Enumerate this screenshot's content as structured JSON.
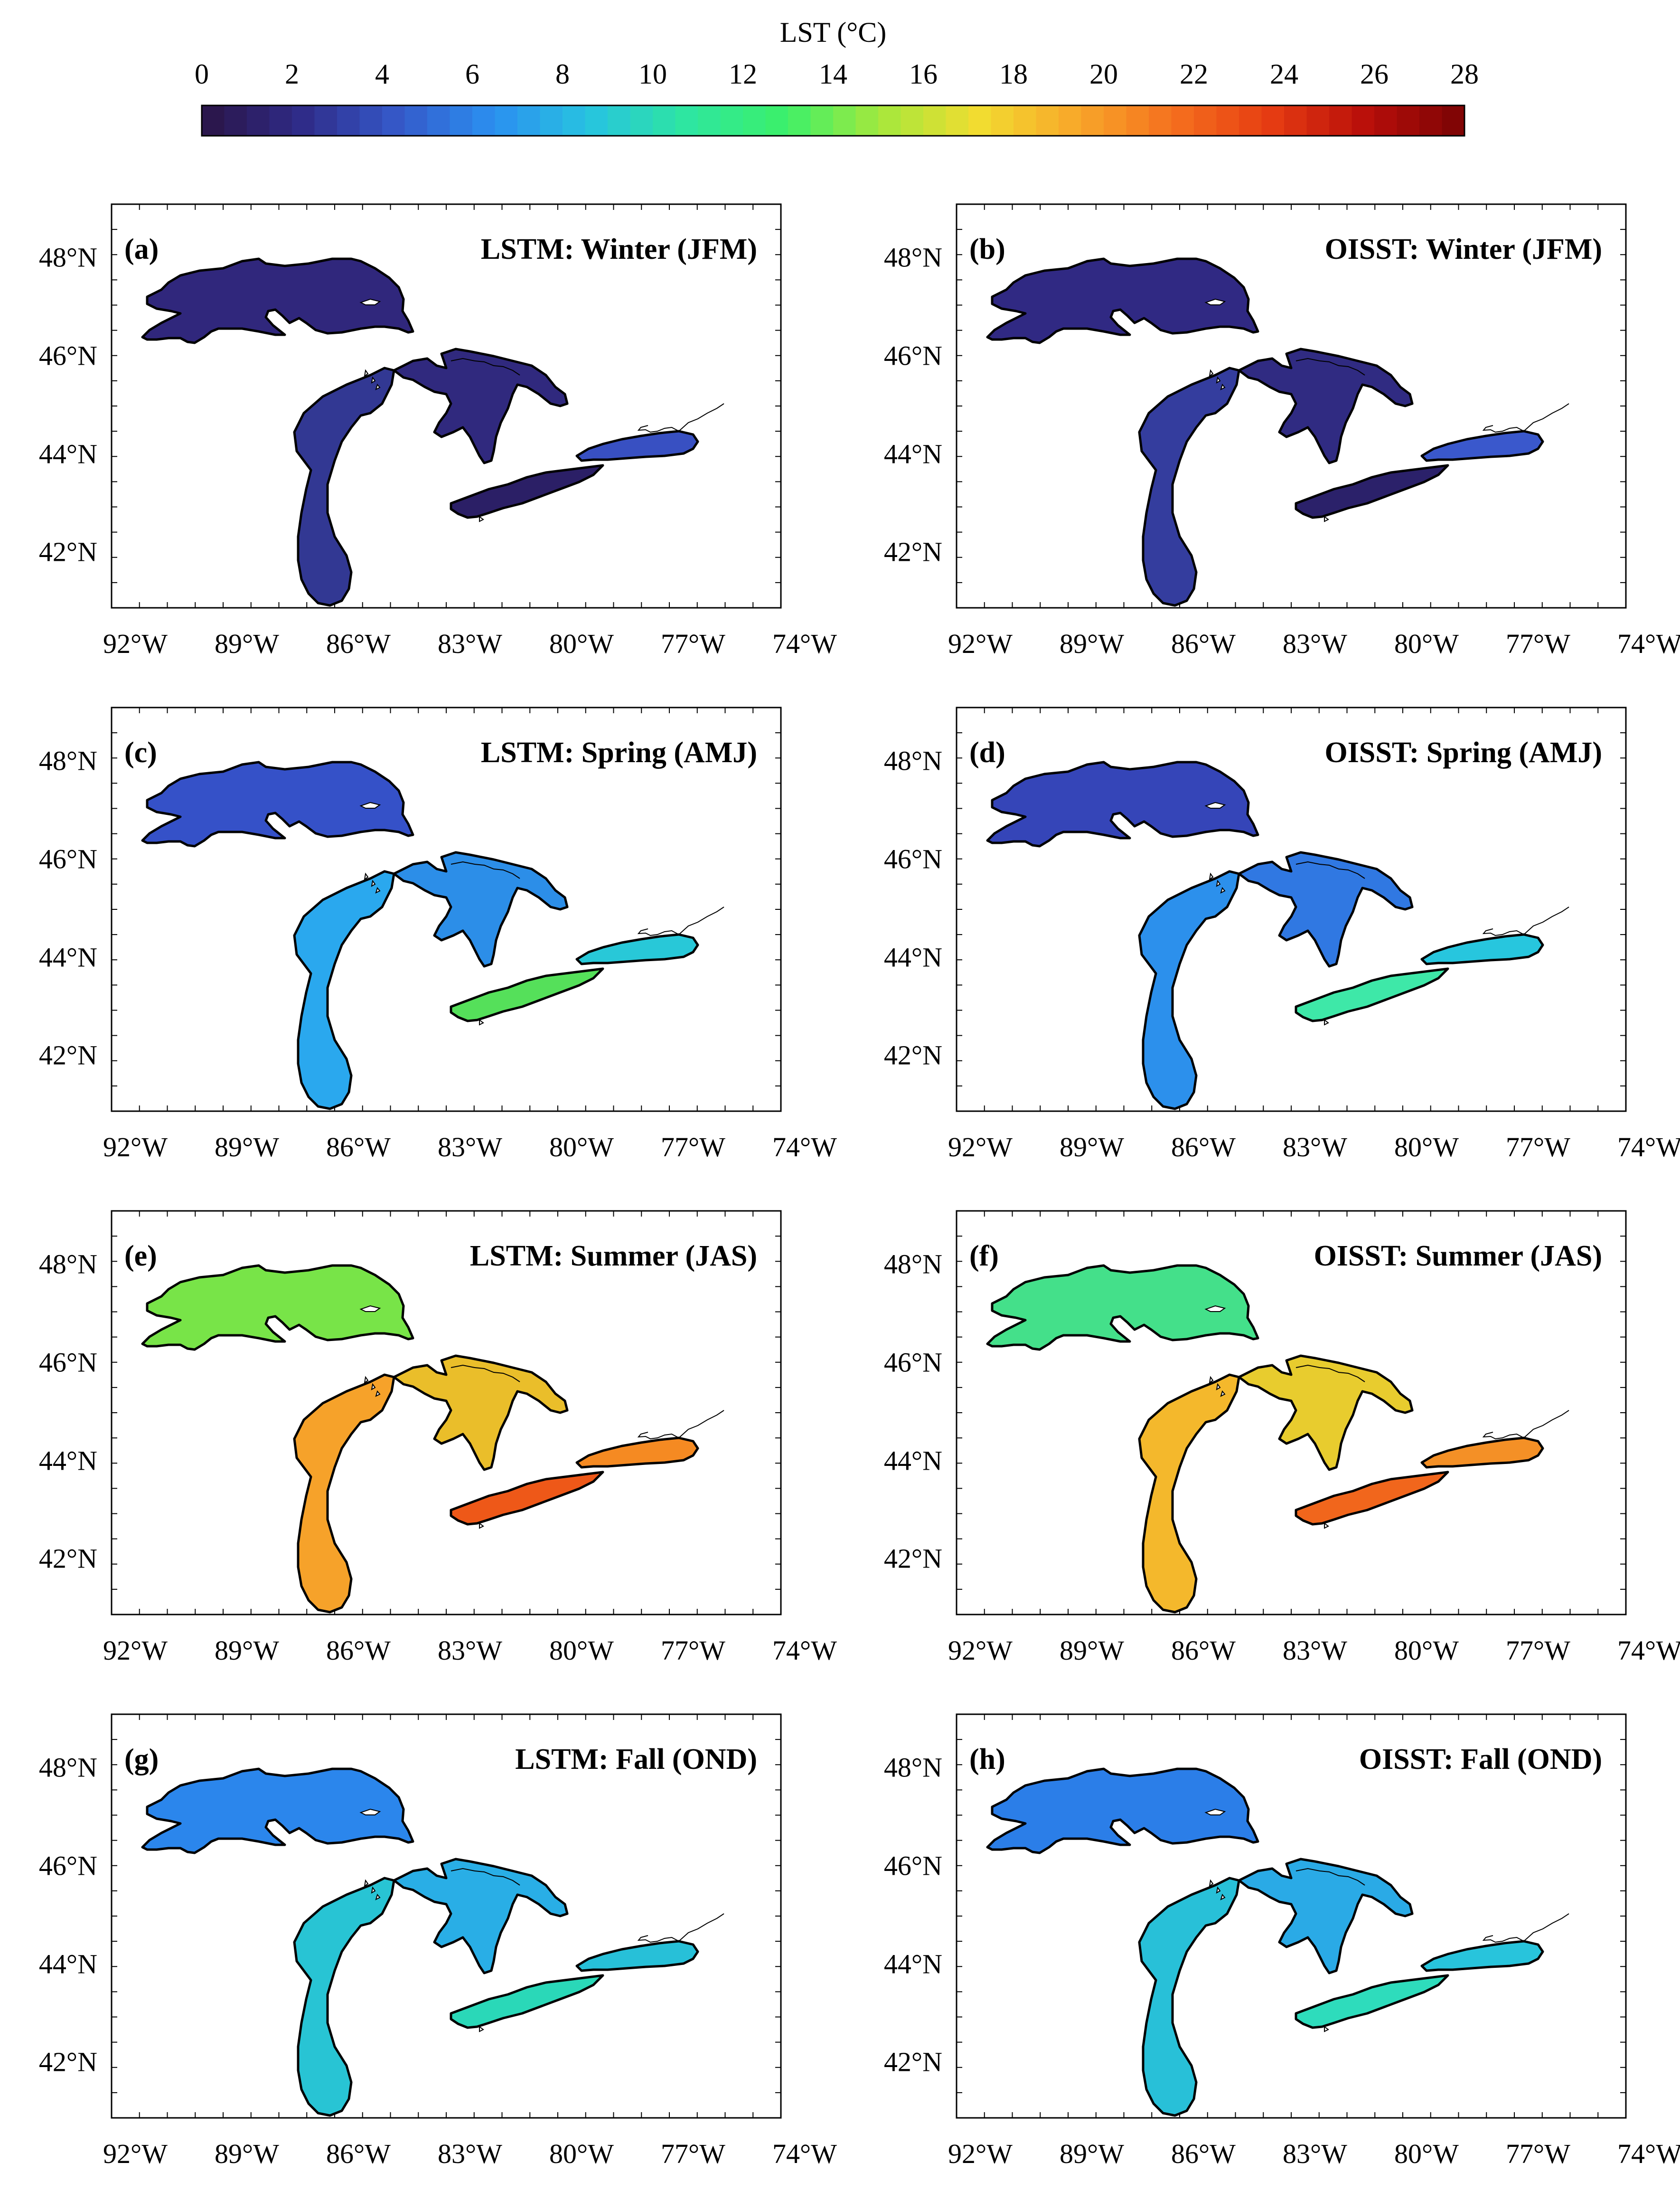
{
  "colorbar": {
    "title": "LST (°C)",
    "ticks": [
      "0",
      "2",
      "4",
      "6",
      "8",
      "10",
      "12",
      "14",
      "16",
      "18",
      "20",
      "22",
      "24",
      "26",
      "28"
    ],
    "range": [
      0,
      28
    ],
    "colors": [
      "#2a1446",
      "#2f2a86",
      "#3558c8",
      "#2b8ff0",
      "#27c4e0",
      "#2ee6a0",
      "#3bf06a",
      "#a6e83c",
      "#f2dc30",
      "#f8a82a",
      "#f5701e",
      "#e63c12",
      "#b80e0a",
      "#7a0404"
    ]
  },
  "axes": {
    "lon_ticks": [
      "92°W",
      "89°W",
      "86°W",
      "83°W",
      "80°W",
      "77°W",
      "74°W"
    ],
    "lat_ticks": [
      "48°N",
      "46°N",
      "44°N",
      "42°N"
    ]
  },
  "panels": [
    {
      "letter": "(a)",
      "title": "LSTM: Winter (JFM)",
      "colors": {
        "superior": "#30277c",
        "michigan": "#323893",
        "huron": "#30297e",
        "erie": "#2b1f66",
        "ontario": "#3850c2"
      }
    },
    {
      "letter": "(b)",
      "title": "OISST: Winter (JFM)",
      "colors": {
        "superior": "#302983",
        "michigan": "#343d9e",
        "huron": "#302b82",
        "erie": "#2b216a",
        "ontario": "#3a58cc"
      }
    },
    {
      "letter": "(c)",
      "title": "LSTM: Spring (AMJ)",
      "colors": {
        "superior": "#3551c8",
        "michigan": "#2aa8ee",
        "huron": "#2c8ee8",
        "erie": "#55e05a",
        "ontario": "#28c8d8"
      }
    },
    {
      "letter": "(d)",
      "title": "OISST: Spring (AMJ)",
      "colors": {
        "superior": "#3545b8",
        "michigan": "#2c90ec",
        "huron": "#3078e2",
        "erie": "#3ee8a8",
        "ontario": "#27c6de"
      }
    },
    {
      "letter": "(e)",
      "title": "LSTM: Summer (JAS)",
      "colors": {
        "superior": "#78e448",
        "michigan": "#f6a22a",
        "huron": "#eabe2a",
        "erie": "#ee5818",
        "ontario": "#f58a22"
      }
    },
    {
      "letter": "(f)",
      "title": "OISST: Summer (JAS)",
      "colors": {
        "superior": "#44e08a",
        "michigan": "#f4b82c",
        "huron": "#e8cc2e",
        "erie": "#f1661c",
        "ontario": "#f49026"
      }
    },
    {
      "letter": "(g)",
      "title": "LSTM: Fall (OND)",
      "colors": {
        "superior": "#2b86ec",
        "michigan": "#28c4d4",
        "huron": "#29aee6",
        "erie": "#2ad8b8",
        "ontario": "#27c0d8"
      }
    },
    {
      "letter": "(h)",
      "title": "OISST: Fall (OND)",
      "colors": {
        "superior": "#2b7ee8",
        "michigan": "#28c0d8",
        "huron": "#2aaae6",
        "erie": "#2edcbc",
        "ontario": "#28c4dc"
      }
    }
  ]
}
